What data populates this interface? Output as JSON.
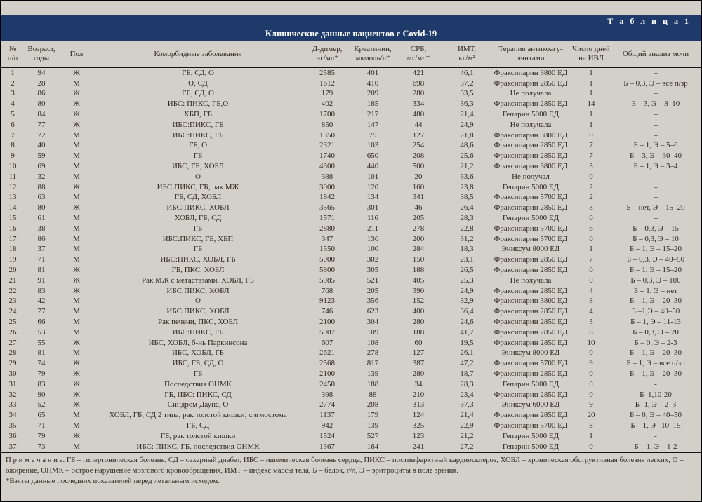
{
  "colors": {
    "header_band": "#1d3a6a",
    "band_text": "#ffffff",
    "page_bg": "#d3d0c9",
    "text": "#332a20",
    "rule": "#141414"
  },
  "header": {
    "table_label": "Т а б л и ц а  1",
    "title": "Клинические данные пациентов с Covid-19"
  },
  "table": {
    "columns": [
      "№\nп/п",
      "Возраст,\nгоды",
      "Пол",
      "Коморбидные заболевания",
      "Д-димер,\nнг/мл*",
      "Креатинин,\nмкмоль/л*",
      "СРБ,\nмг/мл*",
      "ИМТ,\nкг/м²",
      "Терапия антикоагу-\nлянтами",
      "Число дней\nна ИВЛ",
      "Общий анализ мочи"
    ],
    "col_keys": [
      "num",
      "age",
      "sex",
      "comorbidities",
      "d-dimer",
      "creatinine",
      "crp",
      "bmi",
      "anticoagulant-therapy",
      "ventilator-days",
      "urinalysis"
    ],
    "rows": [
      [
        "1",
        "94",
        "Ж",
        "ГБ, СД, О",
        "2585",
        "401",
        "421",
        "46,1",
        "Фраксипарин 3800 ЕД",
        "1",
        "–"
      ],
      [
        "2",
        "28",
        "М",
        "О, СД",
        "1612",
        "410",
        "698",
        "37,2",
        "Фраксипарин 2850 ЕД",
        "1",
        "Б – 0,3, Э – все п/зр"
      ],
      [
        "3",
        "86",
        "Ж",
        "ГБ, СД, О",
        "179",
        "209",
        "280",
        "33,5",
        "Не получала",
        "1",
        "–"
      ],
      [
        "4",
        "80",
        "Ж",
        "ИБС: ПИКС, ГБ,О",
        "402",
        "185",
        "334",
        "36,3",
        "Фраксипарин 2850 ЕД",
        "14",
        "Б – 3, Э – 8–10"
      ],
      [
        "5",
        "84",
        "Ж",
        "ХБП, ГБ",
        "1700",
        "217",
        "480",
        "21,4",
        "Гепарин 5000 ЕД",
        "1",
        "–"
      ],
      [
        "6",
        "77",
        "Ж",
        "ИБС:ПИКС, ГБ",
        "850",
        "147",
        "44",
        "24,9",
        "Не получала",
        "1",
        "–"
      ],
      [
        "7",
        "72",
        "М",
        "ИБС:ПИКС, ГБ",
        "1350",
        "79",
        "127",
        "21,8",
        "Фраксипарин 3800 ЕД",
        "0",
        "–"
      ],
      [
        "8",
        "40",
        "М",
        "ГБ, О",
        "2321",
        "103",
        "254",
        "48,6",
        "Фраксипарин 2850 ЕД",
        "7",
        "Б – 1, Э – 5–6"
      ],
      [
        "9",
        "59",
        "М",
        "ГБ",
        "1740",
        "650",
        "208",
        "25,6",
        "Фраксипарин 2850 ЕД",
        "7",
        "Б – 3, Э – 30–40"
      ],
      [
        "10",
        "69",
        "М",
        "ИБС, ГБ, ХОБЛ",
        "4300",
        "440",
        "500",
        "21,2",
        "Фраксипарин 3800 ЕД",
        "3",
        "Б – 1, Э – 3–4"
      ],
      [
        "11",
        "32",
        "М",
        "О",
        "388",
        "101",
        "20",
        "33,6",
        "Не получал",
        "0",
        "–"
      ],
      [
        "12",
        "88",
        "Ж",
        "ИБС:ПИКС, ГБ, рак МЖ",
        "3000",
        "120",
        "160",
        "23,8",
        "Гепарин 5000 ЕД",
        "2",
        "–"
      ],
      [
        "13",
        "63",
        "М",
        "ГБ, СД, ХОБЛ",
        "1842",
        "134",
        "341",
        "38,5",
        "Фраксипарин 5700 ЕД",
        "2",
        "–"
      ],
      [
        "14",
        "80",
        "Ж",
        "ИБС:ПИКС, ХОБЛ",
        "3565",
        "301",
        "46",
        "26,4",
        "Фраксипарин 2850 ЕД",
        "3",
        "Б – нет, Э – 15–20"
      ],
      [
        "15",
        "61",
        "М",
        "ХОБЛ, ГБ, СД",
        "1571",
        "116",
        "205",
        "28,3",
        "Гепарин 5000 ЕД",
        "0",
        "–"
      ],
      [
        "16",
        "38",
        "М",
        "ГБ",
        "2880",
        "211",
        "278",
        "22,8",
        "Фраксипарин 5700 ЕД",
        "6",
        "Б – 0,3, Э – 15"
      ],
      [
        "17",
        "86",
        "М",
        "ИБС:ПИКС, ГБ, ХБП",
        "347",
        "136",
        "200",
        "31,2",
        "Фраксипарин 5700 ЕД",
        "0",
        "Б – 0,3, Э – 10"
      ],
      [
        "18",
        "37",
        "М",
        "ГБ",
        "1550",
        "100",
        "284",
        "18,3",
        "Эниксум 8000 ЕД",
        "1",
        "Б – 1, Э – 15–20"
      ],
      [
        "19",
        "71",
        "М",
        "ИБС:ПИКС, ХОБЛ,  ГБ",
        "5000",
        "302",
        "150",
        "23,1",
        "Фраксипарин 2850 ЕД",
        "7",
        "Б – 0,3, Э – 40–50"
      ],
      [
        "20",
        "81",
        "Ж",
        "ГБ, ПКС, ХОБЛ",
        "5800",
        "305",
        "188",
        "26,5",
        "Фраксипарин 2850 ЕД",
        "0",
        "Б – 1, Э – 15–20"
      ],
      [
        "21",
        "91",
        "Ж",
        "Рак МЖ с метастазами,  ХОБЛ, ГБ",
        "5985",
        "521",
        "405",
        "25,3",
        "Не получала",
        "0",
        "Б – 0,3, Э – 100"
      ],
      [
        "22",
        "83",
        "Ж",
        "ИБС:ПИКС, ХОБЛ",
        "768",
        "205",
        "390",
        "24,9",
        "Фраксипарин 2850 ЕД",
        "4",
        "Б – 1, Э – нет"
      ],
      [
        "23",
        "42",
        "М",
        "О",
        "9123",
        "356",
        "152",
        "32,9",
        "Фраксипарин 3800 ЕД",
        "8",
        "Б – 1, Э – 20–30"
      ],
      [
        "24",
        "77",
        "М",
        "ИБС:ПИКС, ХОБЛ",
        "746",
        "623",
        "400",
        "36,4",
        "Фраксипарин 2850 ЕД",
        "4",
        "Б –1,Э – 40–50"
      ],
      [
        "25",
        "66",
        "М",
        "Рак печени, ПКС, ХОБЛ",
        "2100",
        "304",
        "280",
        "24,6",
        "Фраксипарин 2850 ЕД",
        "3",
        "Б – 1, Э – 11-13"
      ],
      [
        "26",
        "53",
        "М",
        "ИБС:ПИКС, ГБ",
        "5007",
        "109",
        "188",
        "41,7",
        "Фраксипарин 2850 ЕД",
        "8",
        "Б – 0,3, Э – 20"
      ],
      [
        "27",
        "55",
        "Ж",
        "ИБС, ХОБЛ, б-нь Паркинсона",
        "607",
        "108",
        "60",
        "19,5",
        "Фраксипарин 2850 ЕД",
        "10",
        "Б – 0, Э – 2-3"
      ],
      [
        "28",
        "81",
        "М",
        "ИБС, ХОБЛ, ГБ",
        "2621",
        "278",
        "127",
        "26.1",
        "Эниксум 8000 ЕД",
        "0",
        "Б – 1, Э – 20–30"
      ],
      [
        "29",
        "74",
        "Ж",
        "ИБС, ГБ, СД, О",
        "2568",
        "817",
        "387",
        "47,2",
        "Фраксипарин 5700 ЕД",
        "9",
        "Б – 1, Э – все п/зр"
      ],
      [
        "30",
        "79",
        "Ж",
        "ГБ",
        "2100",
        "139",
        "280",
        "18,7",
        "Фраксипарин 2850 ЕД",
        "0",
        "Б – 1, Э – 20–30"
      ],
      [
        "31",
        "83",
        "Ж",
        "Последствия ОНМК",
        "2450",
        "188",
        "34",
        "28,3",
        "Гепарин 5000 ЕД",
        "0",
        "-"
      ],
      [
        "32",
        "90",
        "Ж",
        "ГБ, ИБС: ПИКС, СД",
        "398",
        "88",
        "210",
        "23,4",
        "Фраксипарин 2850 ЕД",
        "0",
        "Б–1,10-20"
      ],
      [
        "33",
        "52",
        "Ж",
        "Синдром Дауна, О",
        "2774",
        "208",
        "313",
        "37,3",
        "Эниксум 6000 ЕД",
        "9",
        "Б -1, Э – 2–3"
      ],
      [
        "34",
        "65",
        "М",
        "ХОБЛ, ГБ, СД 2 типа, рак толстой кишки, сигмостома",
        "1137",
        "179",
        "124",
        "21,4",
        "Фраксипарин 2850 ЕД",
        "20",
        "Б – 0, Э – 40–50"
      ],
      [
        "35",
        "71",
        "М",
        "ГБ, СД",
        "942",
        "139",
        "325",
        "22,9",
        "Фраксипарин 5700 ЕД",
        "8",
        "Б – 1, Э –10–15"
      ],
      [
        "36",
        "79",
        "Ж",
        "ГБ, рак толстой кишки",
        "1524",
        "527",
        "123",
        "21,2",
        "Гепарин 5000 ЕД",
        "1",
        "-"
      ],
      [
        "37",
        "73",
        "М",
        "ИБС: ПИКС, ГБ, последствия ОНМК",
        "1367",
        "164",
        "241",
        "27,2",
        "Гепарин 5000 ЕД",
        "0",
        "Б – 1, Э – 1-2"
      ]
    ]
  },
  "footer": {
    "note": "П р и м е ч а н и е. ГБ – гипертоническая болезнь, СД – сахарный диабет, ИБС – ишемическая болезнь сердца, ПИКС – постинфарктный кардиосклероз, ХОБЛ – хроническая обструктивная болезнь легких, О – ожирение, ОНМК – острое нарушение мозгового кровообращения, ИМТ – индекс массы тела, Б – белок, г/л, Э – эритроциты в поле зрения.",
    "asterisk_note": "*Взяты данные последних показателей перед летальным исходом."
  }
}
